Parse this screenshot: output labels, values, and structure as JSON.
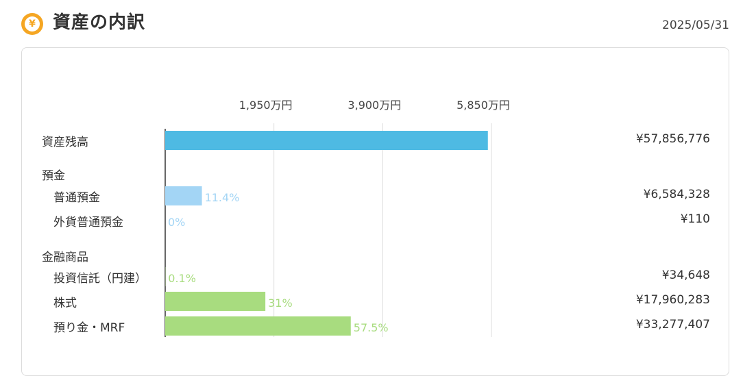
{
  "header": {
    "icon": "yen-coin-icon",
    "icon_glyph": "¥",
    "title": "資産の内訳",
    "date": "2025/05/31"
  },
  "colors": {
    "total": "#4ebae3",
    "deposit": "#a3d5f5",
    "financial": "#a8dc7f",
    "grid": "#dddddd",
    "axis": "#333333"
  },
  "chart_data": {
    "type": "bar",
    "orientation": "horizontal",
    "x_ticks": [
      "1,950万円",
      "3,900万円",
      "5,850万円"
    ],
    "x_tick_values": [
      19500000,
      39000000,
      58500000
    ],
    "xlim": [
      0,
      58500000
    ],
    "grid": true,
    "rows": [
      {
        "kind": "item",
        "label": "資産残高",
        "value": 57856776,
        "amount": "¥57,856,776",
        "percent": "",
        "color_key": "total"
      },
      {
        "kind": "group",
        "label": "預金"
      },
      {
        "kind": "item",
        "label": "普通預金",
        "value": 6584328,
        "amount": "¥6,584,328",
        "percent": "11.4%",
        "color_key": "deposit"
      },
      {
        "kind": "item",
        "label": "外貨普通預金",
        "value": 110,
        "amount": "¥110",
        "percent": "0%",
        "color_key": "deposit"
      },
      {
        "kind": "group",
        "label": "金融商品"
      },
      {
        "kind": "item",
        "label": "投資信託（円建）",
        "value": 34648,
        "amount": "¥34,648",
        "percent": "0.1%",
        "color_key": "financial"
      },
      {
        "kind": "item",
        "label": "株式",
        "value": 17960283,
        "amount": "¥17,960,283",
        "percent": "31%",
        "color_key": "financial"
      },
      {
        "kind": "item",
        "label": "預り金・MRF",
        "value": 33277407,
        "amount": "¥33,277,407",
        "percent": "57.5%",
        "color_key": "financial"
      }
    ]
  }
}
